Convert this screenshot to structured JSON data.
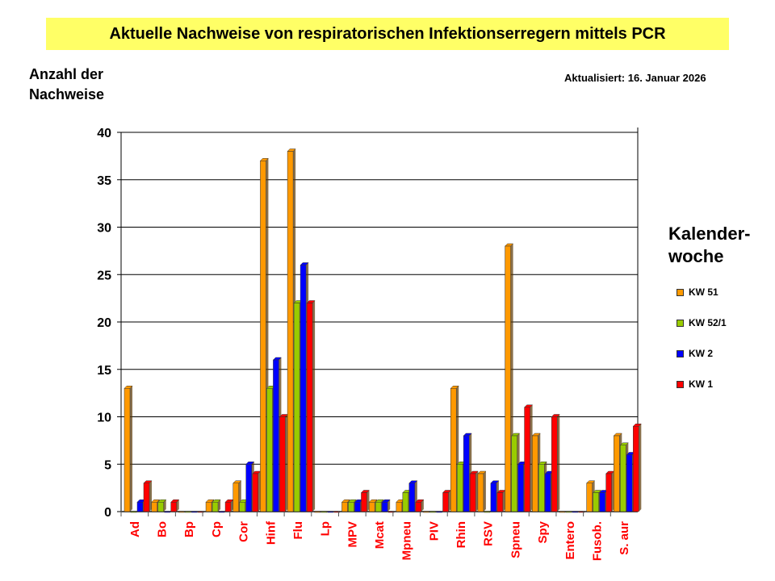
{
  "header": {
    "title": "Aktuelle Nachweise von respiratorischen Infektionserregern mittels PCR",
    "updated": "Aktualisiert:  16. Januar 2026"
  },
  "chart_data": {
    "type": "bar",
    "title": "Aktuelle Nachweise von respiratorischen Infektionserregern mittels PCR",
    "ylabel": "Anzahl der Nachweise",
    "ylabel_lines": [
      "Anzahl der",
      "Nachweise"
    ],
    "xlabel": "",
    "ylim": [
      0,
      40
    ],
    "yticks": [
      0,
      5,
      10,
      15,
      20,
      25,
      30,
      35,
      40
    ],
    "grid": true,
    "legend_title_lines": [
      "Kalender-",
      "woche"
    ],
    "legend_position": "right",
    "categories": [
      "Ad",
      "Bo",
      "Bp",
      "Cp",
      "Cor",
      "Hinf",
      "Flu",
      "Lp",
      "MPV",
      "Mcat",
      "Mpneu",
      "PIV",
      "Rhin",
      "RSV",
      "Spneu",
      "Spy",
      "Entero",
      "Fusob.",
      "S. aur"
    ],
    "series": [
      {
        "name": "KW 51",
        "color": "#ff9900",
        "values": [
          13,
          1,
          0,
          1,
          3,
          37,
          38,
          0,
          1,
          1,
          1,
          0,
          13,
          4,
          28,
          8,
          0,
          3,
          8
        ]
      },
      {
        "name": "KW 52/1",
        "color": "#99cc00",
        "values": [
          0,
          1,
          0,
          1,
          1,
          13,
          22,
          0,
          1,
          1,
          2,
          0,
          5,
          0,
          8,
          5,
          0,
          2,
          7
        ]
      },
      {
        "name": "KW 2",
        "color": "#0000ff",
        "values": [
          1,
          0,
          0,
          0,
          5,
          16,
          26,
          0,
          1,
          1,
          3,
          0,
          8,
          3,
          5,
          4,
          0,
          2,
          6
        ]
      },
      {
        "name": "KW 1",
        "color": "#ff0000",
        "values": [
          3,
          1,
          0,
          1,
          4,
          10,
          22,
          0,
          2,
          0,
          1,
          2,
          4,
          2,
          11,
          10,
          0,
          4,
          9
        ]
      }
    ]
  }
}
